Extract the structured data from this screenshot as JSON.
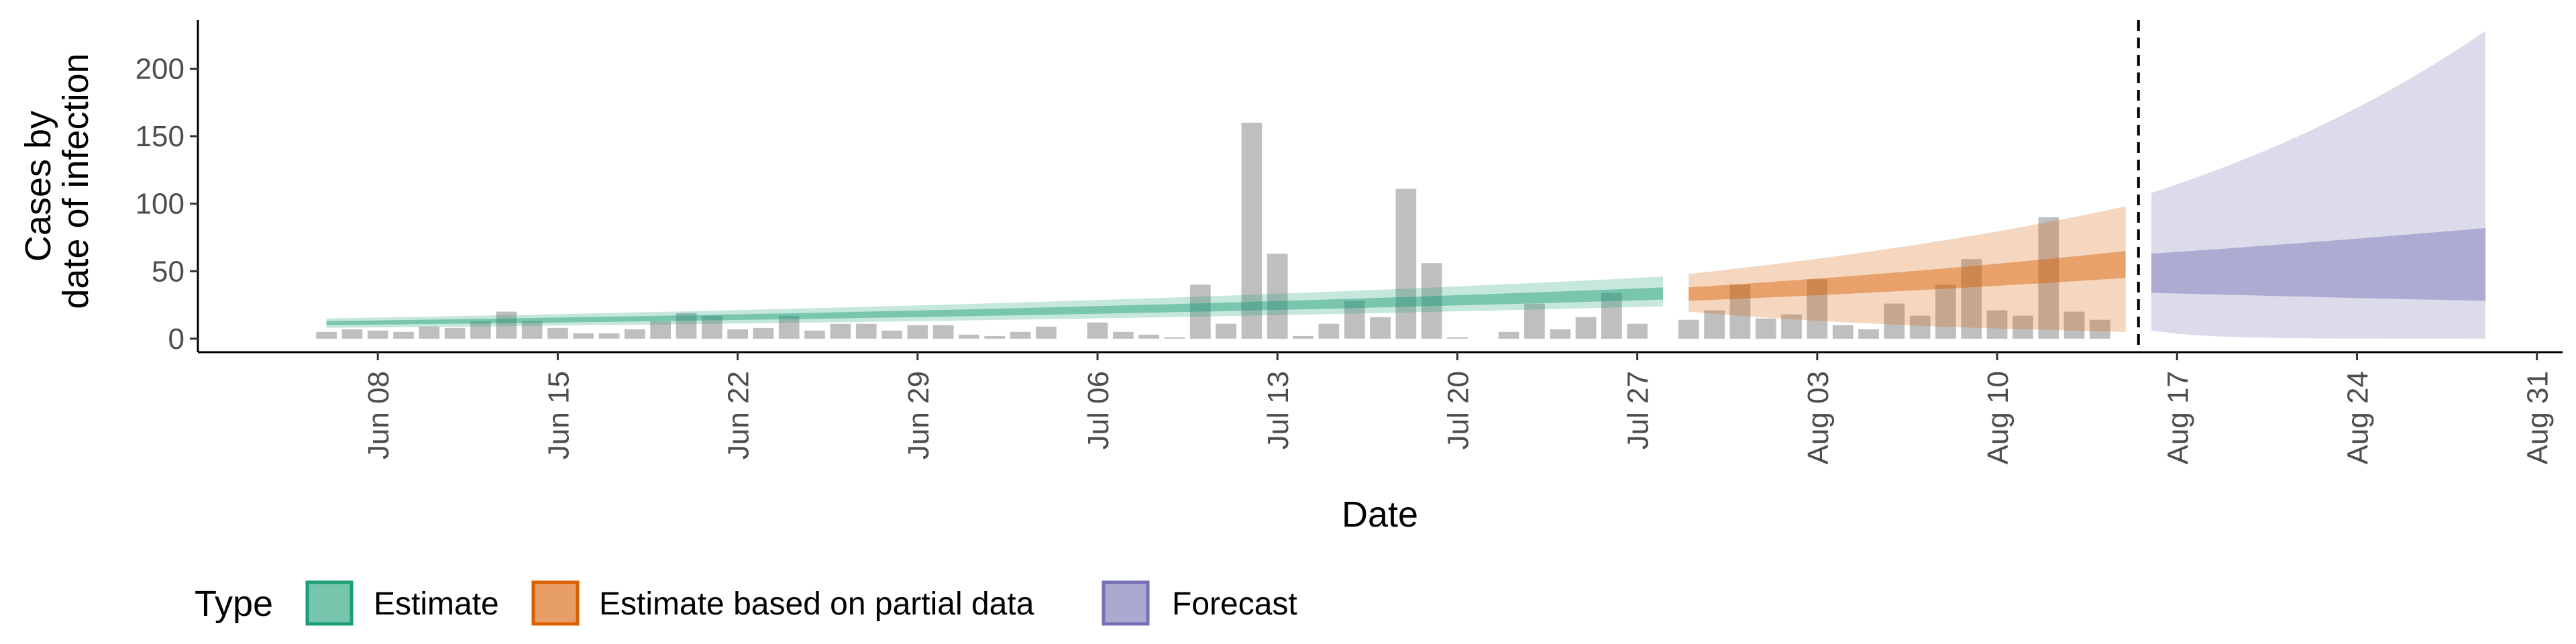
{
  "chart_data": {
    "type": "area",
    "xlabel": "Date",
    "ylabel_lines": [
      "Cases by",
      "date of infection"
    ],
    "x_tick_labels": [
      "Jun 08",
      "Jun 15",
      "Jun 22",
      "Jun 29",
      "Jul 06",
      "Jul 13",
      "Jul 20",
      "Jul 27",
      "Aug 03",
      "Aug 10",
      "Aug 17",
      "Aug 24",
      "Aug 31"
    ],
    "x_tick_dates": [
      "2020-06-08",
      "2020-06-15",
      "2020-06-22",
      "2020-06-29",
      "2020-07-06",
      "2020-07-13",
      "2020-07-20",
      "2020-07-27",
      "2020-08-03",
      "2020-08-10",
      "2020-08-17",
      "2020-08-24",
      "2020-08-31"
    ],
    "y_ticks": [
      0,
      50,
      100,
      150,
      200
    ],
    "xlim": [
      "2020-06-01",
      "2020-09-01"
    ],
    "ylim": [
      -10,
      236
    ],
    "grid": false,
    "legend_position": "bottom-left",
    "forecast_start_marker": "2020-08-15",
    "observed_cases": {
      "start": "2020-06-06",
      "values": [
        5,
        7,
        6,
        5,
        9,
        8,
        13,
        20,
        13,
        8,
        4,
        4,
        7,
        13,
        19,
        17,
        7,
        8,
        17,
        6,
        11,
        11,
        6,
        10,
        10,
        3,
        2,
        5,
        9,
        0,
        12,
        5,
        3,
        1,
        40,
        11,
        160,
        63,
        2,
        11,
        28,
        16,
        111,
        56,
        1,
        0,
        5,
        26,
        7,
        16,
        34,
        11,
        0,
        14,
        21,
        40,
        15,
        18,
        44,
        10,
        7,
        26,
        17,
        40,
        59,
        21,
        17,
        90,
        20,
        14
      ]
    },
    "series": [
      {
        "name": "Estimate",
        "color": "#1b9e77",
        "x_start": "2020-06-06",
        "x_end": "2020-07-28",
        "median_start": 11,
        "median_end": 33,
        "inner_lower_start": 10,
        "inner_lower_end": 29,
        "inner_upper_start": 13,
        "inner_upper_end": 38,
        "outer_lower_start": 8,
        "outer_lower_end": 24,
        "outer_upper_start": 15,
        "outer_upper_end": 46
      },
      {
        "name": "Estimate based on partial data",
        "color": "#d95f02",
        "x_start": "2020-07-29",
        "x_end": "2020-08-15",
        "median_start": 33,
        "median_end": 55,
        "inner_lower_start": 28,
        "inner_lower_end": 45,
        "inner_upper_start": 38,
        "inner_upper_end": 65,
        "outer_lower_start": 20,
        "outer_lower_end": 5,
        "outer_upper_start": 48,
        "outer_upper_end": 98
      },
      {
        "name": "Forecast",
        "color": "#7570b3",
        "x_start": "2020-08-16",
        "x_end": "2020-08-29",
        "median_start": 48,
        "median_end": 55,
        "inner_lower_start": 34,
        "inner_lower_end": 28,
        "inner_upper_start": 63,
        "inner_upper_end": 82,
        "outer_lower_start": 6,
        "outer_lower_end": 0,
        "outer_upper_start": 108,
        "outer_upper_end": 228
      }
    ]
  },
  "legend": {
    "title": "Type",
    "items": [
      "Estimate",
      "Estimate based on partial data",
      "Forecast"
    ]
  }
}
